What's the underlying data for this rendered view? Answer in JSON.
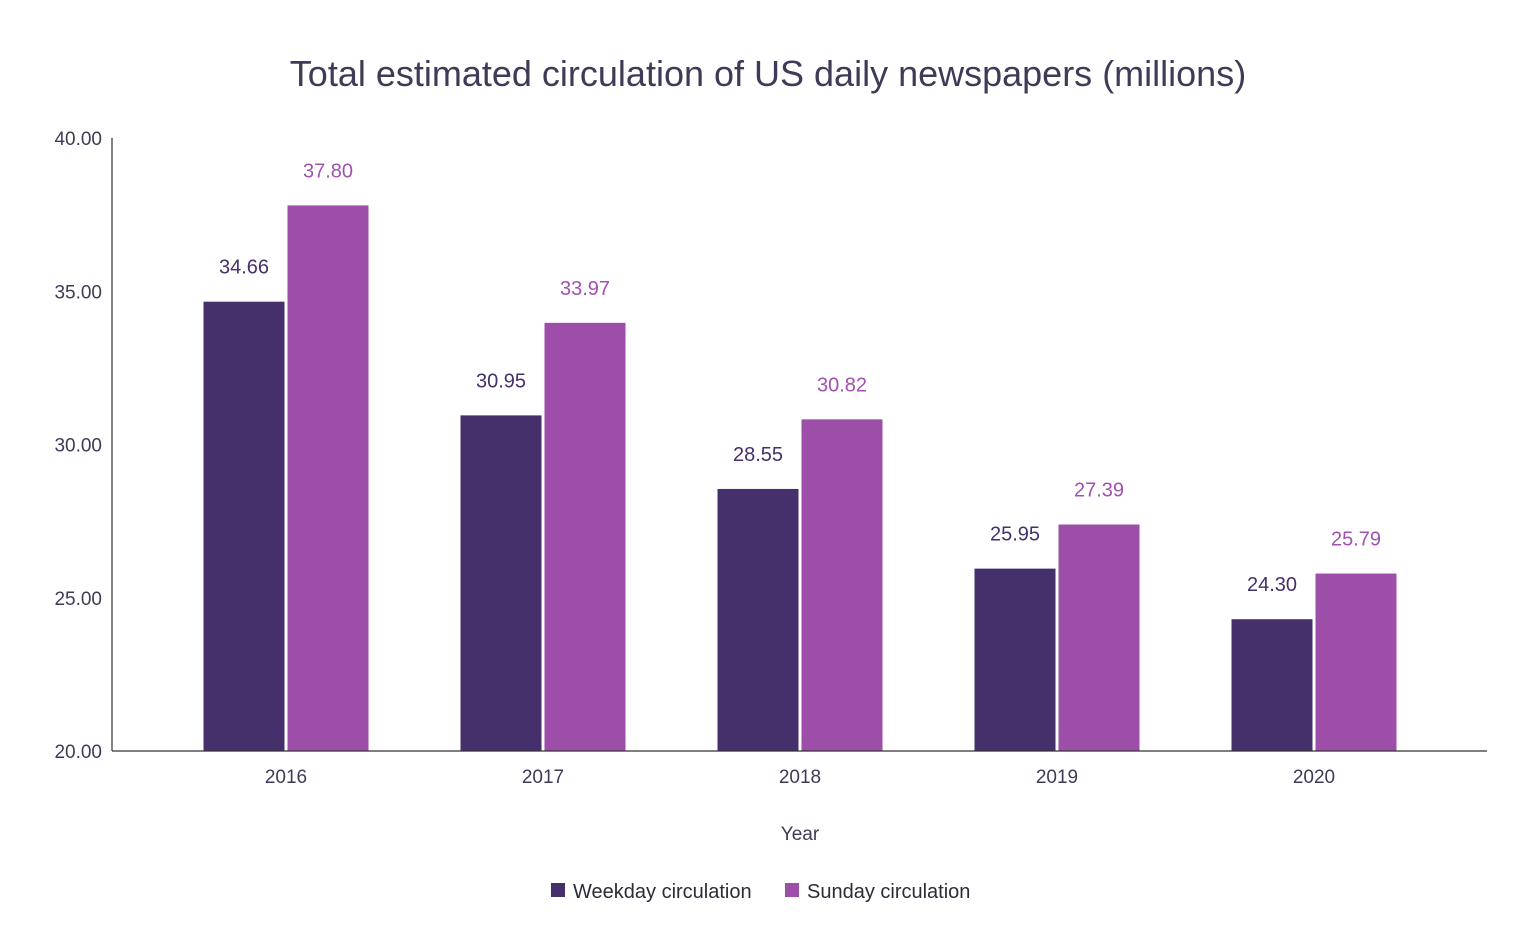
{
  "chart_data": {
    "type": "bar",
    "title": "Total estimated circulation of US daily newspapers (millions)",
    "xlabel": "Year",
    "ylabel": "",
    "categories": [
      "2016",
      "2017",
      "2018",
      "2019",
      "2020"
    ],
    "series": [
      {
        "name": "Weekday circulation",
        "values": [
          34.66,
          30.95,
          28.55,
          25.95,
          24.3
        ],
        "labels": [
          "34.66",
          "30.95",
          "28.55",
          "25.95",
          "24.30"
        ],
        "color": "#45306b",
        "label_color": "#45306b"
      },
      {
        "name": "Sunday circulation",
        "values": [
          37.8,
          33.97,
          30.82,
          27.39,
          25.79
        ],
        "labels": [
          "37.80",
          "33.97",
          "30.82",
          "27.39",
          "25.79"
        ],
        "color": "#9c4ea8",
        "label_color": "#a151b0"
      }
    ],
    "ylim": [
      20,
      40
    ],
    "yticks": [
      "20.00",
      "25.00",
      "30.00",
      "35.00",
      "40.00"
    ],
    "grid": false,
    "legend": "bottom"
  }
}
